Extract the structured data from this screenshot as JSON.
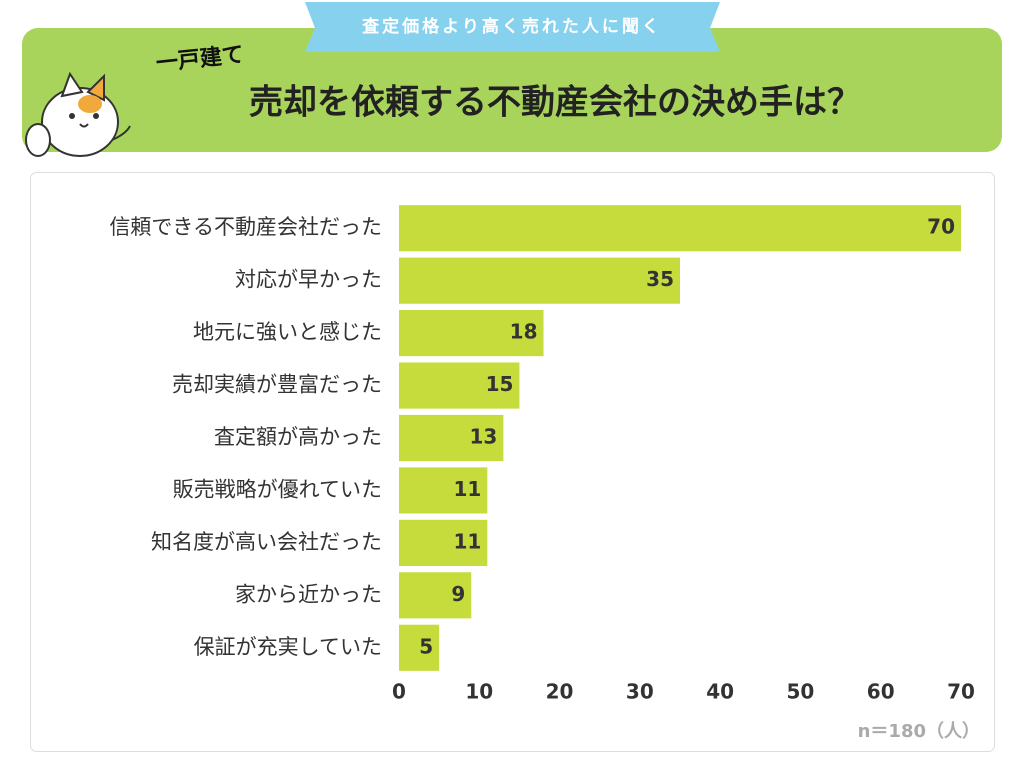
{
  "chart_data": {
    "type": "bar",
    "orientation": "horizontal",
    "banner": "査定価格より高く売れた人に聞く",
    "label": "一戸建て",
    "title": "売却を依頼する不動産会社の決め手は？",
    "categories": [
      "信頼できる不動産会社だった",
      "対応が早かった",
      "地元に強いと感じた",
      "売却実績が豊富だった",
      "査定額が高かった",
      "販売戦略が優れていた",
      "知名度が高い会社だった",
      "家から近かった",
      "保証が充実していた"
    ],
    "values": [
      70,
      35,
      18,
      15,
      13,
      11,
      11,
      9,
      5
    ],
    "color": "#c5dc3c",
    "xlim": [
      0,
      70
    ],
    "xticks": [
      0,
      10,
      20,
      30,
      40,
      50,
      60,
      70
    ],
    "grid": false,
    "note": "n＝180（人）"
  }
}
